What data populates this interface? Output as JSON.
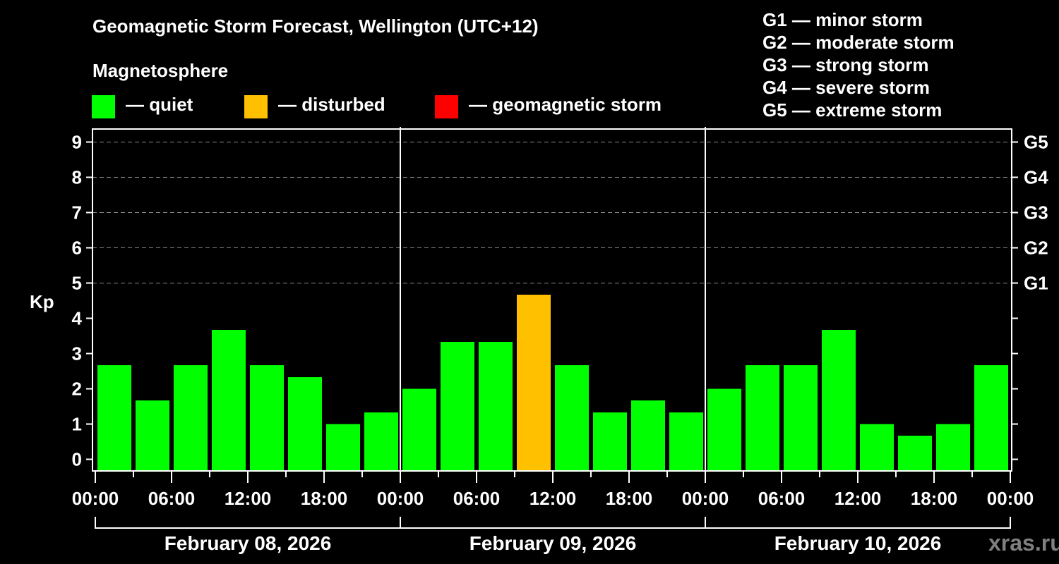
{
  "header": {
    "title": "Geomagnetic Storm Forecast, Wellington (UTC+12)",
    "subtitle": "Magnetosphere"
  },
  "legend": {
    "items": [
      {
        "label": "— quiet",
        "color": "#00ff00"
      },
      {
        "label": "— disturbed",
        "color": "#ffc000"
      },
      {
        "label": "— geomagnetic storm",
        "color": "#ff0000"
      }
    ]
  },
  "gscale_legend": [
    "G1 — minor storm",
    "G2 — moderate storm",
    "G3 — strong storm",
    "G4 — severe storm",
    "G5 — extreme storm"
  ],
  "watermark": "xras.ru",
  "chart_data": {
    "type": "bar",
    "title": "Geomagnetic Storm Forecast, Wellington (UTC+12)",
    "ylabel": "Kp",
    "ylim": [
      0,
      9
    ],
    "yticks": [
      0,
      1,
      2,
      3,
      4,
      5,
      6,
      7,
      8,
      9
    ],
    "right_axis_labels": [
      {
        "kp": 5,
        "label": "G1"
      },
      {
        "kp": 6,
        "label": "G2"
      },
      {
        "kp": 7,
        "label": "G3"
      },
      {
        "kp": 8,
        "label": "G4"
      },
      {
        "kp": 9,
        "label": "G5"
      }
    ],
    "grid": {
      "horizontal": true,
      "from_kp": 5,
      "style": "dashed"
    },
    "xtick_labels": [
      "00:00",
      "06:00",
      "12:00",
      "18:00",
      "00:00",
      "06:00",
      "12:00",
      "18:00",
      "00:00",
      "06:00",
      "12:00",
      "18:00",
      "00:00"
    ],
    "interval_hours": 3,
    "colors": {
      "quiet": "#00ff00",
      "disturbed": "#ffc000",
      "storm": "#ff0000"
    },
    "days": [
      {
        "date": "February 08, 2026",
        "values": [
          2.67,
          1.67,
          2.67,
          3.67,
          2.67,
          2.33,
          1.0,
          1.33
        ],
        "status": [
          "quiet",
          "quiet",
          "quiet",
          "quiet",
          "quiet",
          "quiet",
          "quiet",
          "quiet"
        ]
      },
      {
        "date": "February 09, 2026",
        "values": [
          2.0,
          3.33,
          3.33,
          4.67,
          2.67,
          1.33,
          1.67,
          1.33
        ],
        "status": [
          "quiet",
          "quiet",
          "quiet",
          "disturbed",
          "quiet",
          "quiet",
          "quiet",
          "quiet"
        ]
      },
      {
        "date": "February 10, 2026",
        "values": [
          2.0,
          2.67,
          2.67,
          3.67,
          1.0,
          0.67,
          1.0,
          2.67
        ],
        "status": [
          "quiet",
          "quiet",
          "quiet",
          "quiet",
          "quiet",
          "quiet",
          "quiet",
          "quiet"
        ]
      }
    ]
  }
}
